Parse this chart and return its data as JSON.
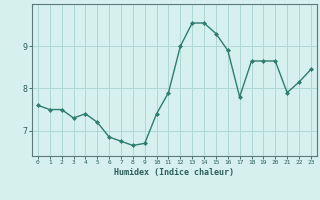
{
  "x": [
    0,
    1,
    2,
    3,
    4,
    5,
    6,
    7,
    8,
    9,
    10,
    11,
    12,
    13,
    14,
    15,
    16,
    17,
    18,
    19,
    20,
    21,
    22,
    23
  ],
  "y": [
    7.6,
    7.5,
    7.5,
    7.3,
    7.4,
    7.2,
    6.85,
    6.75,
    6.65,
    6.7,
    7.4,
    7.9,
    9.0,
    9.55,
    9.55,
    9.3,
    8.9,
    7.8,
    8.65,
    8.65,
    8.65,
    7.9,
    8.15,
    8.45
  ],
  "xlabel": "Humidex (Indice chaleur)",
  "yticks": [
    7,
    8,
    9
  ],
  "xticks": [
    0,
    1,
    2,
    3,
    4,
    5,
    6,
    7,
    8,
    9,
    10,
    11,
    12,
    13,
    14,
    15,
    16,
    17,
    18,
    19,
    20,
    21,
    22,
    23
  ],
  "line_color": "#2e7d6e",
  "marker_color": "#2e7d6e",
  "bg_color": "#d6f0ee",
  "grid_color": "#aed8d4",
  "axes_color": "#5a7a78",
  "tick_color": "#2e5f5a",
  "xlim": [
    -0.5,
    23.5
  ],
  "ylim": [
    6.4,
    10.0
  ]
}
